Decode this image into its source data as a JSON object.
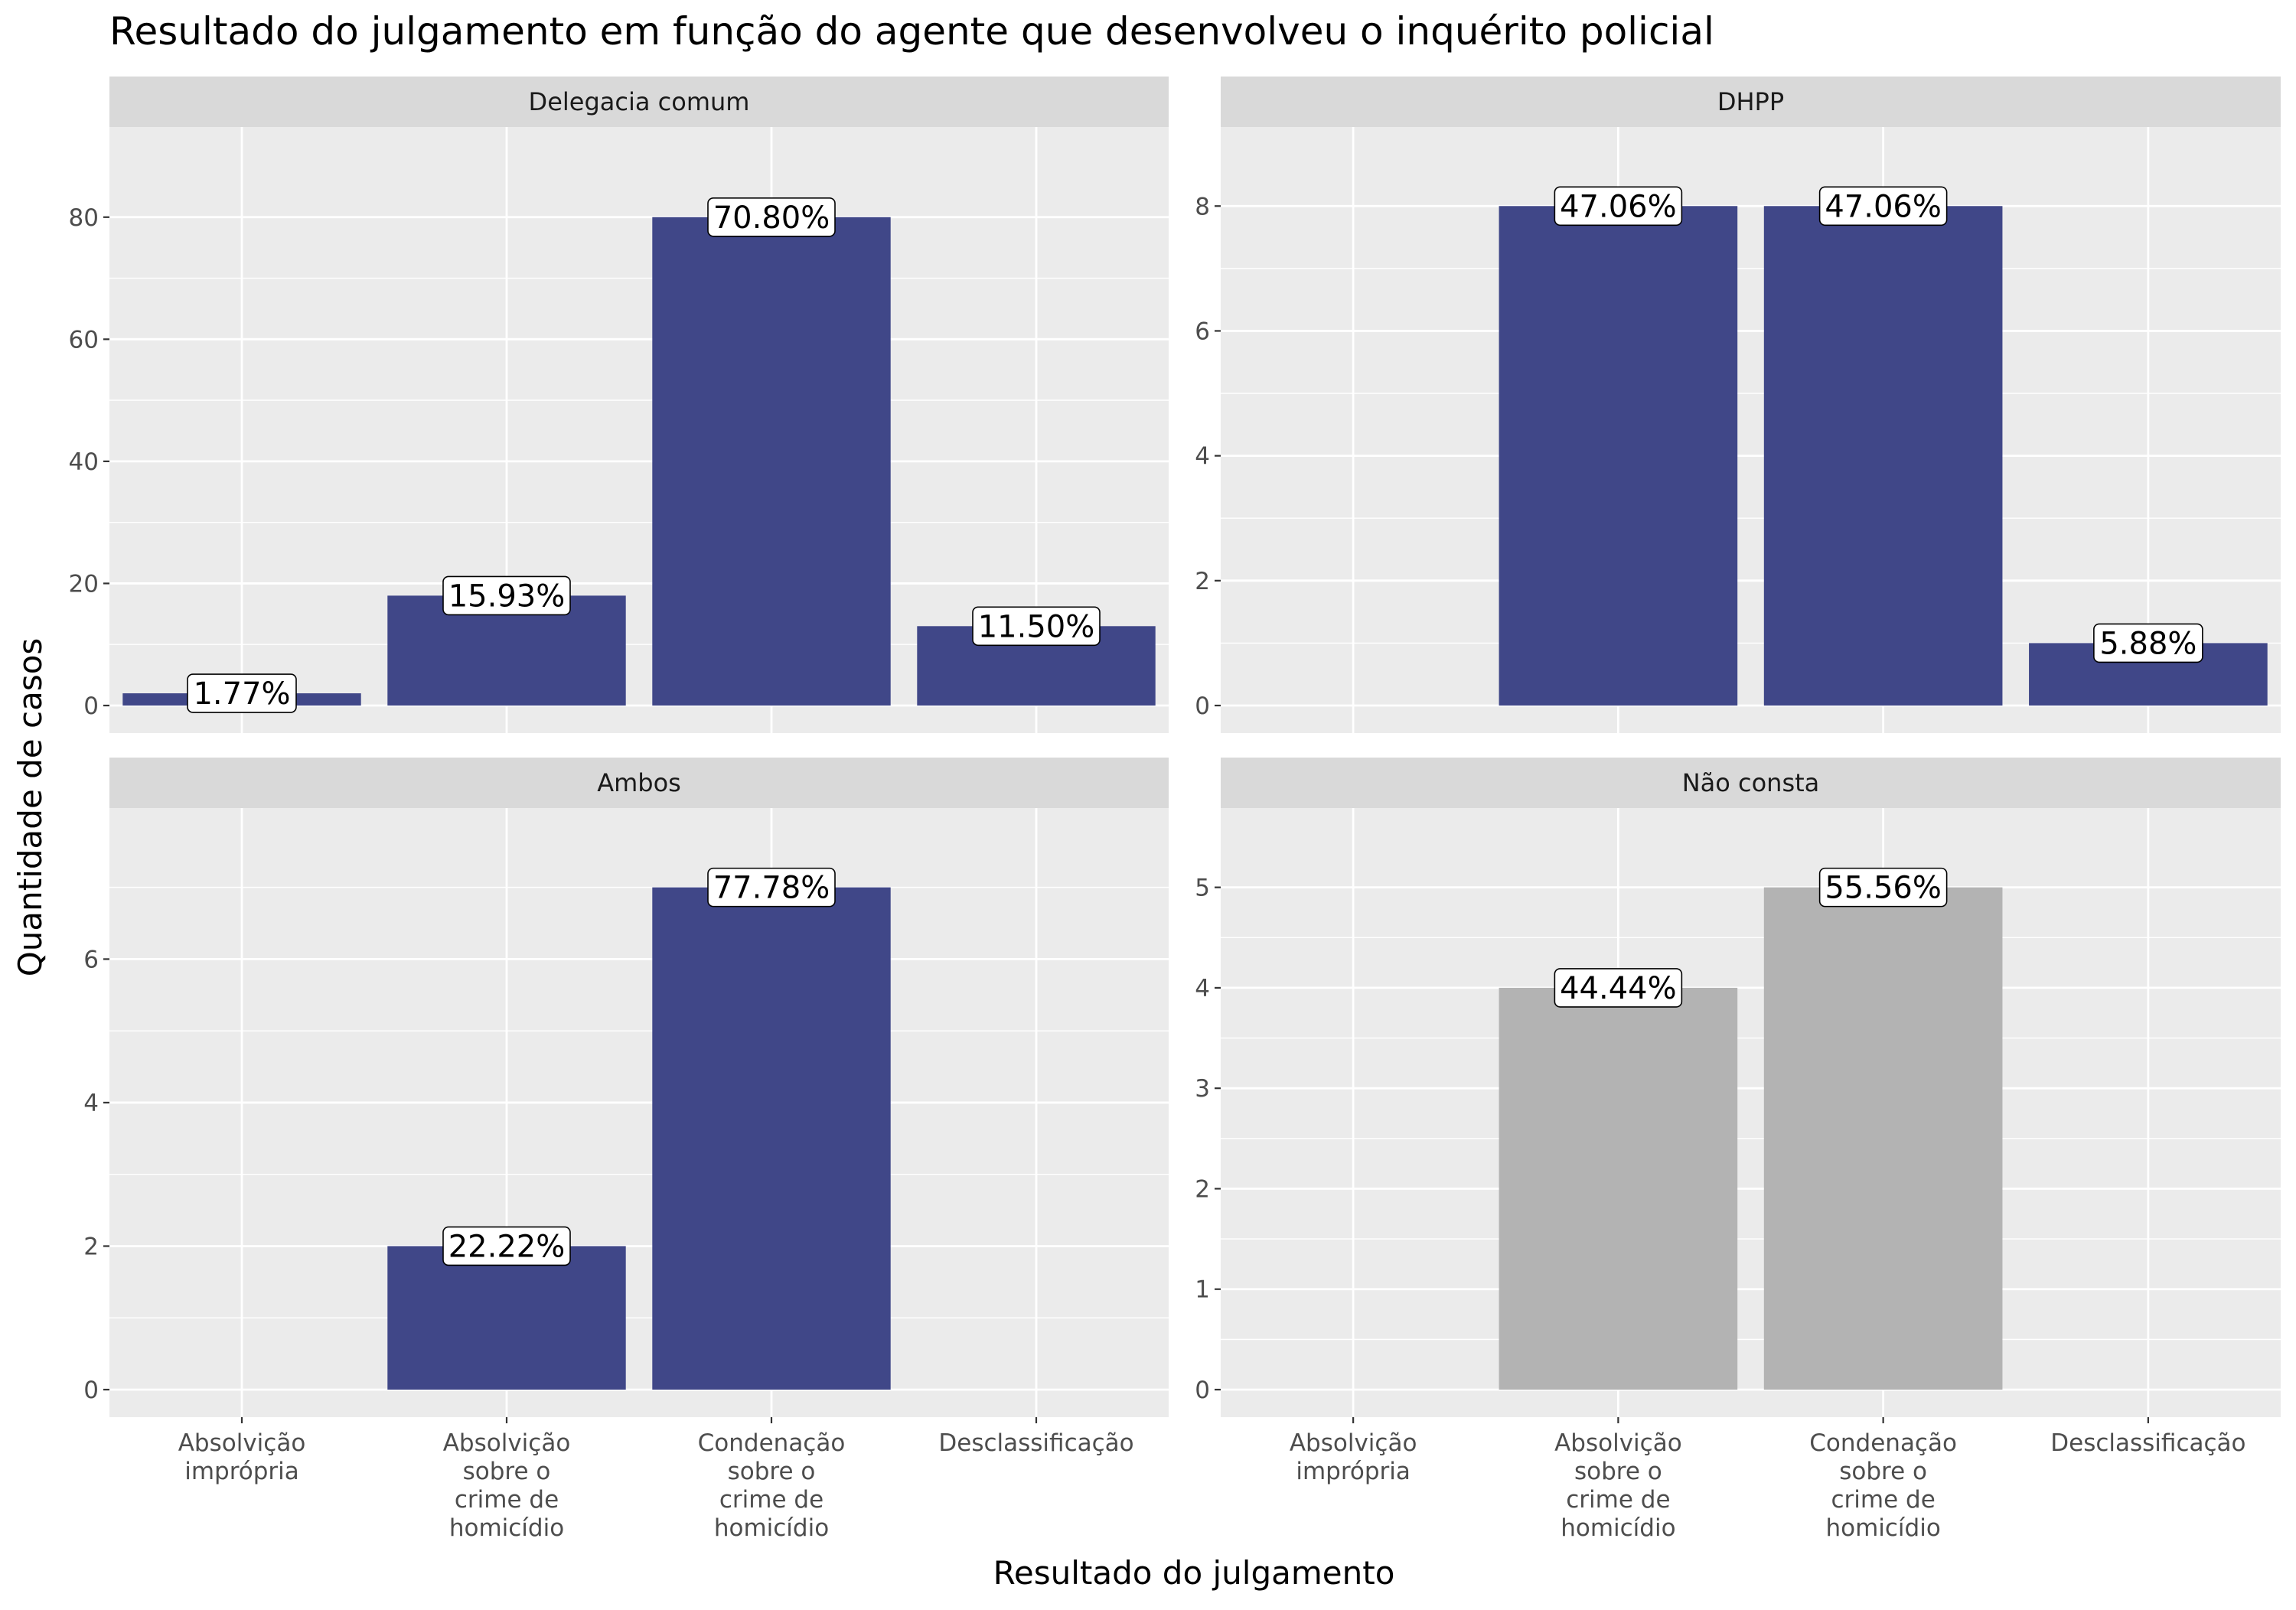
{
  "chart_data": {
    "type": "bar",
    "title": "Resultado do julgamento em função do agente que desenvolveu o inquérito policial",
    "xlabel": "Resultado do julgamento",
    "ylabel": "Quantidade de casos",
    "categories": [
      "Absolvição imprópria",
      "Absolvição sobre o crime de homicídio",
      "Condenação sobre o crime de homicídio",
      "Desclassificação"
    ],
    "category_tick_lines": [
      [
        "Absolvição",
        "imprópria"
      ],
      [
        "Absolvição",
        "sobre o",
        "crime de",
        "homicídio"
      ],
      [
        "Condenação",
        "sobre o",
        "crime de",
        "homicídio"
      ],
      [
        "Desclassificação"
      ]
    ],
    "grid": true,
    "legend": "none",
    "colors": {
      "bar_default": "#404788",
      "bar_na": "#b3b3b3",
      "panel_bg": "#ebebeb",
      "strip_bg": "#d9d9d9"
    },
    "panels": [
      {
        "name": "Delegacia comum",
        "values": [
          2,
          18,
          80,
          13
        ],
        "labels": [
          "1.77%",
          "15.93%",
          "70.80%",
          "11.50%"
        ],
        "ylim": [
          0,
          90
        ],
        "yticks": [
          0,
          20,
          40,
          60,
          80
        ],
        "color": "#404788"
      },
      {
        "name": "DHPP",
        "values": [
          0,
          8,
          8,
          1
        ],
        "labels": [
          "",
          "47.06%",
          "47.06%",
          "5.88%"
        ],
        "ylim": [
          0,
          8.8
        ],
        "yticks": [
          0,
          2,
          4,
          6,
          8
        ],
        "color": "#404788"
      },
      {
        "name": "Ambos",
        "values": [
          0,
          2,
          7,
          0
        ],
        "labels": [
          "",
          "22.22%",
          "77.78%",
          ""
        ],
        "ylim": [
          0,
          7.7
        ],
        "yticks": [
          0,
          2,
          4,
          6
        ],
        "color": "#404788"
      },
      {
        "name": "Não consta",
        "values": [
          0,
          4,
          5,
          0
        ],
        "labels": [
          "",
          "44.44%",
          "55.56%",
          ""
        ],
        "ylim": [
          0,
          5.5
        ],
        "yticks": [
          0,
          1,
          2,
          3,
          4,
          5
        ],
        "color": "#b3b3b3"
      }
    ]
  }
}
